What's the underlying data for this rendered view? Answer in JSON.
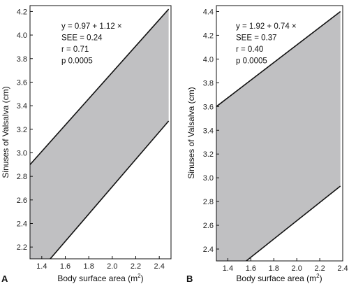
{
  "chart_data": [
    {
      "type": "area",
      "panel_label": "A",
      "xlabel": "Body surface area (m",
      "xlabel_sup": "2",
      "xlabel_close": ")",
      "ylabel": "Sinuses of Valsalva (cm)",
      "xlim": [
        1.3,
        2.5
      ],
      "ylim": [
        2.1,
        4.25
      ],
      "xticks": [
        1.4,
        1.6,
        1.8,
        2.0,
        2.2,
        2.4
      ],
      "yticks": [
        2.2,
        2.4,
        2.6,
        2.8,
        3.0,
        3.2,
        3.4,
        3.6,
        3.8,
        4.0,
        4.2
      ],
      "upper": [
        [
          1.3,
          2.9
        ],
        [
          2.48,
          4.22
        ]
      ],
      "lower": [
        [
          1.3,
          1.9
        ],
        [
          2.48,
          3.27
        ]
      ],
      "band_color": "#c0c0c2",
      "annotation": [
        "y = 0.97 + 1.12 ×",
        "SEE = 0.24",
        "r = 0.71",
        "p 0.0005"
      ]
    },
    {
      "type": "area",
      "panel_label": "B",
      "xlabel": "Body surface area (m",
      "xlabel_sup": "2",
      "xlabel_close": ")",
      "ylabel": "Sinuses of Valsalva (cm)",
      "xlim": [
        1.3,
        2.4
      ],
      "ylim": [
        2.3,
        4.45
      ],
      "xticks": [
        1.4,
        1.6,
        1.8,
        2.0,
        2.2,
        2.4
      ],
      "yticks": [
        2.4,
        2.6,
        2.8,
        3.0,
        3.2,
        3.4,
        3.6,
        3.8,
        4.0,
        4.2,
        4.4
      ],
      "upper": [
        [
          1.3,
          3.6
        ],
        [
          2.38,
          4.4
        ]
      ],
      "lower": [
        [
          1.3,
          2.1
        ],
        [
          2.38,
          2.93
        ]
      ],
      "band_color": "#c0c0c2",
      "annotation": [
        "y = 1.92 + 0.74 ×",
        "SEE = 0.37",
        "r = 0.40",
        "p 0.0005"
      ]
    }
  ]
}
